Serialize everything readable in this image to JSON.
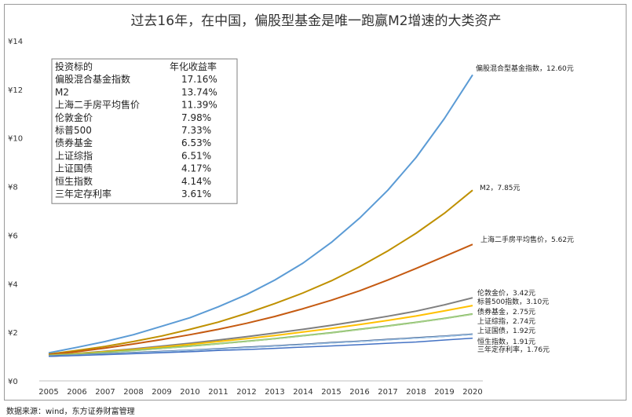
{
  "title": "过去16年，在中国，偏股型基金是唯一跑赢M2增速的大类资产",
  "source": "数据来源：wind，东方证券财富管理",
  "table": {
    "headers": [
      "投资标的",
      "年化收益率"
    ],
    "rows": [
      [
        "偏股混合基金指数",
        "17.16%"
      ],
      [
        "M2",
        "13.74%"
      ],
      [
        "上海二手房平均售价",
        "11.39%"
      ],
      [
        "伦敦金价",
        "7.98%"
      ],
      [
        "标普500",
        "7.33%"
      ],
      [
        "债券基金",
        "6.53%"
      ],
      [
        "上证综指",
        "6.51%"
      ],
      [
        "上证国债",
        "4.17%"
      ],
      [
        "恒生指数",
        "4.14%"
      ],
      [
        "三年定存利率",
        "3.61%"
      ]
    ]
  },
  "chart_data": {
    "type": "line",
    "x": [
      2005,
      2006,
      2007,
      2008,
      2009,
      2010,
      2011,
      2012,
      2013,
      2014,
      2015,
      2016,
      2017,
      2018,
      2019,
      2020
    ],
    "ylim": [
      0,
      14
    ],
    "y_ticks": [
      "¥0",
      "¥2",
      "¥4",
      "¥6",
      "¥8",
      "¥10",
      "¥12",
      "¥14"
    ],
    "grid": false,
    "series": [
      {
        "label": "偏股混合型基金指数，12.60元",
        "color": "#5b9bd5",
        "width": 2,
        "values": [
          1.15,
          1.38,
          1.62,
          1.9,
          2.25,
          2.6,
          3.05,
          3.55,
          4.15,
          4.85,
          5.7,
          6.7,
          7.85,
          9.2,
          10.8,
          12.6
        ]
      },
      {
        "label": "M2，7.85元",
        "color": "#bf9000",
        "width": 2,
        "values": [
          1.1,
          1.25,
          1.42,
          1.62,
          1.85,
          2.12,
          2.42,
          2.78,
          3.18,
          3.62,
          4.12,
          4.7,
          5.35,
          6.08,
          6.9,
          7.85
        ]
      },
      {
        "label": "上海二手房平均售价，5.62元",
        "color": "#c55a11",
        "width": 2,
        "values": [
          1.08,
          1.2,
          1.35,
          1.52,
          1.7,
          1.9,
          2.12,
          2.37,
          2.65,
          2.97,
          3.32,
          3.71,
          4.15,
          4.63,
          5.12,
          5.62
        ]
      },
      {
        "label": "伦敦金价，3.42元",
        "color": "#7f7f7f",
        "width": 2,
        "values": [
          1.06,
          1.13,
          1.22,
          1.32,
          1.43,
          1.55,
          1.68,
          1.82,
          1.97,
          2.12,
          2.29,
          2.47,
          2.66,
          2.87,
          3.13,
          3.42
        ]
      },
      {
        "label": "标普500指数，3.10元",
        "color": "#ffc000",
        "width": 2,
        "values": [
          1.05,
          1.12,
          1.2,
          1.29,
          1.39,
          1.5,
          1.62,
          1.74,
          1.87,
          2.01,
          2.16,
          2.32,
          2.49,
          2.67,
          2.88,
          3.1
        ]
      },
      {
        "label": "债券基金，2.75元",
        "color": "#70ad47",
        "width": 2,
        "values": [
          1.04,
          1.1,
          1.17,
          1.25,
          1.34,
          1.43,
          1.53,
          1.63,
          1.74,
          1.86,
          1.98,
          2.12,
          2.26,
          2.41,
          2.57,
          2.75
        ]
      },
      {
        "label": "上证综指，2.74元",
        "color": "#a9d18e",
        "width": 1.5,
        "values": [
          1.04,
          1.09,
          1.16,
          1.24,
          1.33,
          1.42,
          1.52,
          1.62,
          1.73,
          1.85,
          1.97,
          2.11,
          2.25,
          2.4,
          2.56,
          2.74
        ]
      },
      {
        "label": "上证国债，1.92元",
        "color": "#264478",
        "width": 2,
        "values": [
          1.02,
          1.06,
          1.11,
          1.16,
          1.21,
          1.26,
          1.32,
          1.38,
          1.44,
          1.5,
          1.57,
          1.63,
          1.7,
          1.77,
          1.84,
          1.92
        ]
      },
      {
        "label": "恒生指数，1.91元",
        "color": "#9dc3e6",
        "width": 1.5,
        "values": [
          1.02,
          1.06,
          1.1,
          1.15,
          1.2,
          1.26,
          1.31,
          1.37,
          1.43,
          1.49,
          1.56,
          1.62,
          1.69,
          1.76,
          1.83,
          1.91
        ]
      },
      {
        "label": "三年定存利率，1.76元",
        "color": "#4472c4",
        "width": 1.5,
        "values": [
          1.01,
          1.04,
          1.08,
          1.12,
          1.16,
          1.2,
          1.25,
          1.29,
          1.34,
          1.39,
          1.44,
          1.49,
          1.55,
          1.6,
          1.68,
          1.76
        ]
      }
    ]
  }
}
